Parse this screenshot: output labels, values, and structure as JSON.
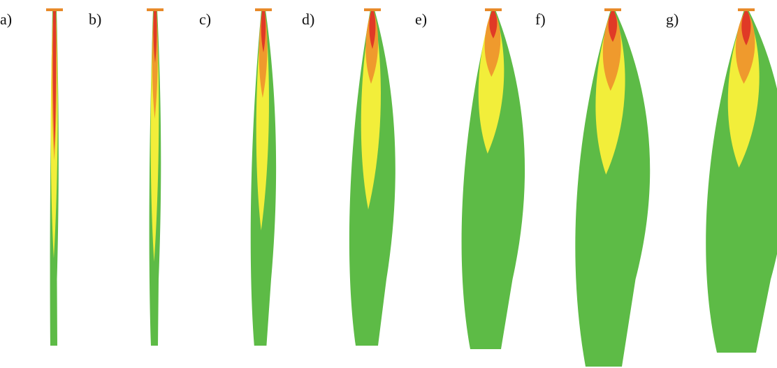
{
  "panels": [
    {
      "label": "a)"
    },
    {
      "label": "b)"
    },
    {
      "label": "c)"
    },
    {
      "label": "d)"
    },
    {
      "label": "e)"
    },
    {
      "label": "f)"
    },
    {
      "label": "g)"
    }
  ]
}
